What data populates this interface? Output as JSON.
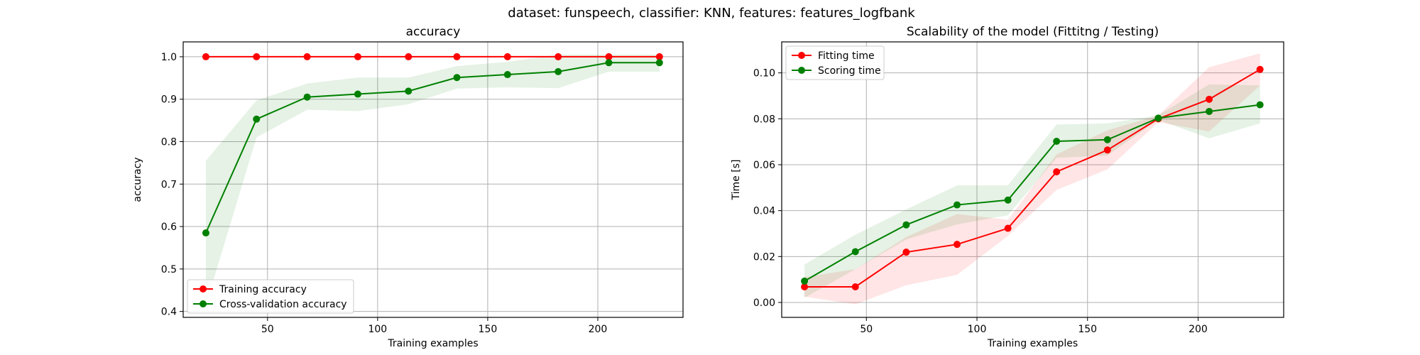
{
  "suptitle": "dataset: funspeech, classifier: KNN, features: features_logfbank",
  "chart_data": [
    {
      "type": "line",
      "title": "accuracy",
      "xlabel": "Training examples",
      "ylabel": "accuracy",
      "xlim": [
        11.7,
        238.7
      ],
      "ylim": [
        0.386,
        1.035
      ],
      "xticks": [
        50,
        100,
        150,
        200
      ],
      "yticks": [
        0.4,
        0.5,
        0.6,
        0.7,
        0.8,
        0.9,
        1.0
      ],
      "ytick_labels": [
        "0.4",
        "0.5",
        "0.6",
        "0.7",
        "0.8",
        "0.9",
        "1.0"
      ],
      "grid": true,
      "legend_position": "lower-left",
      "x": [
        22,
        45,
        68,
        91,
        114,
        136,
        159,
        182,
        205,
        228
      ],
      "series": [
        {
          "name": "Training accuracy",
          "color": "#ff0000",
          "values": [
            1.0,
            1.0,
            1.0,
            1.0,
            1.0,
            1.0,
            1.0,
            1.0,
            1.0,
            1.0
          ],
          "band_low": [
            1.0,
            1.0,
            1.0,
            1.0,
            1.0,
            1.0,
            1.0,
            1.0,
            1.0,
            1.0
          ],
          "band_high": [
            1.0,
            1.0,
            1.0,
            1.0,
            1.0,
            1.0,
            1.0,
            1.0,
            1.0,
            1.0
          ]
        },
        {
          "name": "Cross-validation accuracy",
          "color": "#008000",
          "values": [
            0.585,
            0.853,
            0.905,
            0.912,
            0.919,
            0.951,
            0.958,
            0.965,
            0.986,
            0.986
          ],
          "band_low": [
            0.415,
            0.81,
            0.875,
            0.872,
            0.888,
            0.925,
            0.928,
            0.926,
            0.965,
            0.965
          ],
          "band_high": [
            0.755,
            0.897,
            0.937,
            0.951,
            0.951,
            0.978,
            0.988,
            1.005,
            1.005,
            1.005
          ]
        }
      ]
    },
    {
      "type": "line",
      "title": "Scalability of the model (Fittitng / Testing)",
      "xlabel": "Training examples",
      "ylabel": "Time [s]",
      "xlim": [
        11.7,
        238.7
      ],
      "ylim": [
        -0.0065,
        0.1135
      ],
      "xticks": [
        50,
        100,
        150,
        200
      ],
      "yticks": [
        0.0,
        0.02,
        0.04,
        0.06,
        0.08,
        0.1
      ],
      "ytick_labels": [
        "0.00",
        "0.02",
        "0.04",
        "0.06",
        "0.08",
        "0.10"
      ],
      "grid": true,
      "legend_position": "upper-left",
      "x": [
        22,
        45,
        68,
        91,
        114,
        136,
        159,
        182,
        205,
        228
      ],
      "series": [
        {
          "name": "Fitting time",
          "color": "#ff0000",
          "values": [
            0.0068,
            0.0068,
            0.0219,
            0.0253,
            0.0323,
            0.0569,
            0.0664,
            0.08,
            0.0885,
            0.1015
          ],
          "band_low": [
            0.0025,
            -0.0008,
            0.0075,
            0.012,
            0.029,
            0.049,
            0.058,
            0.0785,
            0.0745,
            0.0945
          ],
          "band_high": [
            0.011,
            0.0145,
            0.0285,
            0.0385,
            0.036,
            0.0645,
            0.075,
            0.0815,
            0.1025,
            0.1085
          ]
        },
        {
          "name": "Scoring time",
          "color": "#008000",
          "values": [
            0.0093,
            0.0221,
            0.0338,
            0.0425,
            0.0446,
            0.0702,
            0.0709,
            0.0803,
            0.0832,
            0.0861
          ],
          "band_low": [
            0.002,
            0.0145,
            0.0275,
            0.034,
            0.038,
            0.063,
            0.064,
            0.0795,
            0.0715,
            0.078
          ],
          "band_high": [
            0.0165,
            0.0295,
            0.0405,
            0.051,
            0.051,
            0.0775,
            0.078,
            0.0815,
            0.095,
            0.0945
          ]
        }
      ]
    }
  ]
}
